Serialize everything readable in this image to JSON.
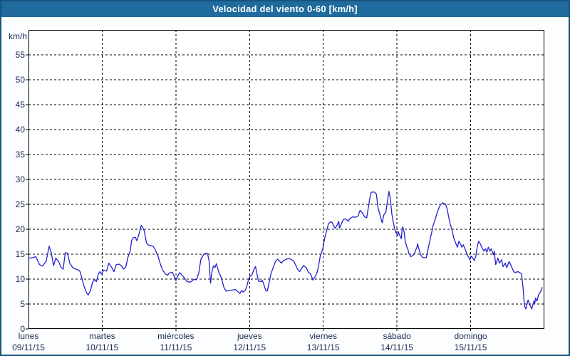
{
  "window": {
    "title": "Velocidad del viento 0-60 [km/h]"
  },
  "colors": {
    "titlebar_bg": "#1F6B9E",
    "frame_border": "#17537F",
    "page_bg": "#FBFDFE",
    "plot_bg": "#FFFFFF",
    "grid": "#000000",
    "line": "#2222CE",
    "label_text": "#1C2951",
    "title_text": "#FFFFFF"
  },
  "chart_data": {
    "type": "line",
    "title": "Velocidad del viento 0-60 [km/h]",
    "ylabel": "km/h",
    "ylim": [
      0,
      60
    ],
    "ytick_step": 5,
    "ytick_labels": [
      "0",
      "5",
      "10",
      "15",
      "20",
      "25",
      "30",
      "35",
      "40",
      "45",
      "50",
      "55"
    ],
    "xlim_days": [
      0,
      7
    ],
    "grid": "dashed",
    "legend": "none",
    "x_axis_days": [
      {
        "name": "lunes",
        "date": "09/11/15"
      },
      {
        "name": "martes",
        "date": "10/11/15"
      },
      {
        "name": "miércoles",
        "date": "11/11/15"
      },
      {
        "name": "jueves",
        "date": "12/11/15"
      },
      {
        "name": "viernes",
        "date": "13/11/15"
      },
      {
        "name": "sábado",
        "date": "14/11/15"
      },
      {
        "name": "domingo",
        "date": "15/11/15"
      }
    ],
    "series": [
      {
        "name": "Velocidad del viento",
        "unit": "km/h",
        "x_unit": "days_since_monday_00h",
        "points": [
          [
            0.0,
            14.2
          ],
          [
            0.06,
            14.3
          ],
          [
            0.1,
            14.5
          ],
          [
            0.15,
            12.9
          ],
          [
            0.19,
            12.6
          ],
          [
            0.24,
            13.6
          ],
          [
            0.28,
            16.6
          ],
          [
            0.31,
            15.2
          ],
          [
            0.34,
            12.7
          ],
          [
            0.37,
            14.2
          ],
          [
            0.41,
            13.5
          ],
          [
            0.44,
            12.4
          ],
          [
            0.47,
            12.0
          ],
          [
            0.5,
            15.3
          ],
          [
            0.53,
            15.2
          ],
          [
            0.56,
            13.2
          ],
          [
            0.6,
            12.3
          ],
          [
            0.64,
            12.0
          ],
          [
            0.67,
            11.9
          ],
          [
            0.7,
            11.5
          ],
          [
            0.73,
            9.9
          ],
          [
            0.75,
            8.7
          ],
          [
            0.79,
            7.2
          ],
          [
            0.81,
            6.8
          ],
          [
            0.84,
            7.7
          ],
          [
            0.87,
            9.4
          ],
          [
            0.9,
            9.9
          ],
          [
            0.92,
            9.5
          ],
          [
            0.95,
            11.1
          ],
          [
            0.97,
            11.5
          ],
          [
            0.99,
            11.0
          ],
          [
            1.02,
            11.8
          ],
          [
            1.06,
            11.6
          ],
          [
            1.09,
            13.2
          ],
          [
            1.13,
            12.3
          ],
          [
            1.16,
            11.5
          ],
          [
            1.19,
            12.9
          ],
          [
            1.23,
            13.0
          ],
          [
            1.26,
            12.7
          ],
          [
            1.29,
            12.0
          ],
          [
            1.32,
            12.4
          ],
          [
            1.35,
            14.4
          ],
          [
            1.38,
            15.6
          ],
          [
            1.4,
            17.8
          ],
          [
            1.42,
            18.3
          ],
          [
            1.45,
            18.4
          ],
          [
            1.47,
            17.7
          ],
          [
            1.5,
            19.0
          ],
          [
            1.53,
            20.8
          ],
          [
            1.55,
            20.4
          ],
          [
            1.57,
            19.7
          ],
          [
            1.6,
            17.3
          ],
          [
            1.62,
            16.9
          ],
          [
            1.66,
            16.7
          ],
          [
            1.69,
            16.6
          ],
          [
            1.72,
            15.9
          ],
          [
            1.76,
            14.5
          ],
          [
            1.79,
            13.0
          ],
          [
            1.82,
            11.8
          ],
          [
            1.86,
            11.0
          ],
          [
            1.89,
            10.8
          ],
          [
            1.91,
            11.2
          ],
          [
            1.95,
            11.4
          ],
          [
            1.98,
            10.5
          ],
          [
            2.0,
            9.7
          ],
          [
            2.02,
            10.4
          ],
          [
            2.05,
            11.3
          ],
          [
            2.09,
            10.7
          ],
          [
            2.12,
            10.1
          ],
          [
            2.15,
            9.5
          ],
          [
            2.19,
            9.4
          ],
          [
            2.21,
            9.5
          ],
          [
            2.24,
            9.9
          ],
          [
            2.28,
            9.9
          ],
          [
            2.31,
            11.2
          ],
          [
            2.34,
            14.0
          ],
          [
            2.38,
            15.0
          ],
          [
            2.41,
            15.2
          ],
          [
            2.43,
            15.1
          ],
          [
            2.45,
            13.7
          ],
          [
            2.47,
            9.2
          ],
          [
            2.49,
            11.5
          ],
          [
            2.51,
            12.7
          ],
          [
            2.53,
            12.3
          ],
          [
            2.55,
            13.1
          ],
          [
            2.58,
            11.5
          ],
          [
            2.62,
            10.1
          ],
          [
            2.65,
            8.4
          ],
          [
            2.68,
            7.6
          ],
          [
            2.72,
            7.7
          ],
          [
            2.76,
            7.8
          ],
          [
            2.81,
            7.9
          ],
          [
            2.84,
            7.5
          ],
          [
            2.87,
            7.1
          ],
          [
            2.89,
            7.7
          ],
          [
            2.91,
            7.4
          ],
          [
            2.94,
            7.7
          ],
          [
            2.96,
            8.4
          ],
          [
            2.98,
            9.6
          ],
          [
            3.01,
            10.7
          ],
          [
            3.03,
            10.8
          ],
          [
            3.06,
            12.0
          ],
          [
            3.08,
            12.5
          ],
          [
            3.09,
            11.8
          ],
          [
            3.12,
            9.6
          ],
          [
            3.16,
            9.5
          ],
          [
            3.17,
            9.8
          ],
          [
            3.19,
            9.1
          ],
          [
            3.22,
            7.7
          ],
          [
            3.24,
            7.6
          ],
          [
            3.26,
            8.9
          ],
          [
            3.29,
            11.1
          ],
          [
            3.32,
            12.3
          ],
          [
            3.35,
            13.5
          ],
          [
            3.38,
            14.0
          ],
          [
            3.4,
            13.7
          ],
          [
            3.43,
            13.2
          ],
          [
            3.46,
            13.7
          ],
          [
            3.5,
            14.0
          ],
          [
            3.53,
            14.1
          ],
          [
            3.56,
            14.0
          ],
          [
            3.6,
            13.6
          ],
          [
            3.63,
            12.7
          ],
          [
            3.65,
            12.0
          ],
          [
            3.68,
            11.5
          ],
          [
            3.7,
            12.0
          ],
          [
            3.73,
            12.7
          ],
          [
            3.75,
            12.5
          ],
          [
            3.77,
            12.3
          ],
          [
            3.8,
            11.3
          ],
          [
            3.82,
            11.2
          ],
          [
            3.84,
            10.6
          ],
          [
            3.86,
            9.8
          ],
          [
            3.9,
            10.8
          ],
          [
            3.92,
            11.5
          ],
          [
            3.94,
            13.0
          ],
          [
            3.96,
            14.7
          ],
          [
            3.99,
            15.9
          ],
          [
            4.0,
            16.6
          ],
          [
            4.02,
            18.3
          ],
          [
            4.05,
            19.9
          ],
          [
            4.07,
            21.1
          ],
          [
            4.1,
            21.5
          ],
          [
            4.12,
            21.4
          ],
          [
            4.14,
            20.7
          ],
          [
            4.16,
            20.2
          ],
          [
            4.19,
            20.9
          ],
          [
            4.21,
            21.6
          ],
          [
            4.22,
            20.2
          ],
          [
            4.24,
            20.9
          ],
          [
            4.27,
            21.9
          ],
          [
            4.3,
            22.1
          ],
          [
            4.32,
            21.9
          ],
          [
            4.34,
            21.6
          ],
          [
            4.36,
            22.1
          ],
          [
            4.4,
            22.5
          ],
          [
            4.44,
            22.4
          ],
          [
            4.47,
            22.6
          ],
          [
            4.5,
            23.8
          ],
          [
            4.53,
            23.3
          ],
          [
            4.56,
            22.5
          ],
          [
            4.59,
            22.3
          ],
          [
            4.63,
            26.1
          ],
          [
            4.65,
            27.4
          ],
          [
            4.69,
            27.5
          ],
          [
            4.72,
            27.1
          ],
          [
            4.74,
            24.5
          ],
          [
            4.78,
            22.3
          ],
          [
            4.8,
            21.3
          ],
          [
            4.82,
            22.8
          ],
          [
            4.85,
            23.5
          ],
          [
            4.89,
            27.6
          ],
          [
            4.91,
            26.2
          ],
          [
            4.93,
            23.1
          ],
          [
            4.95,
            21.4
          ],
          [
            4.97,
            20.0
          ],
          [
            4.99,
            19.2
          ],
          [
            5.01,
            18.8
          ],
          [
            5.02,
            19.5
          ],
          [
            5.03,
            19.0
          ],
          [
            5.05,
            18.4
          ],
          [
            5.06,
            18.1
          ],
          [
            5.07,
            20.0
          ],
          [
            5.08,
            20.5
          ],
          [
            5.1,
            19.2
          ],
          [
            5.11,
            17.8
          ],
          [
            5.13,
            16.6
          ],
          [
            5.15,
            15.9
          ],
          [
            5.16,
            15.2
          ],
          [
            5.19,
            14.5
          ],
          [
            5.22,
            14.8
          ],
          [
            5.24,
            15.3
          ],
          [
            5.27,
            16.4
          ],
          [
            5.28,
            17.1
          ],
          [
            5.3,
            15.9
          ],
          [
            5.32,
            14.9
          ],
          [
            5.35,
            14.3
          ],
          [
            5.4,
            14.3
          ],
          [
            5.41,
            15.2
          ],
          [
            5.44,
            17.3
          ],
          [
            5.47,
            19.3
          ],
          [
            5.49,
            20.7
          ],
          [
            5.51,
            21.6
          ],
          [
            5.54,
            23.1
          ],
          [
            5.57,
            24.3
          ],
          [
            5.59,
            24.9
          ],
          [
            5.62,
            25.3
          ],
          [
            5.66,
            25.0
          ],
          [
            5.68,
            24.1
          ],
          [
            5.7,
            22.6
          ],
          [
            5.72,
            21.2
          ],
          [
            5.75,
            19.7
          ],
          [
            5.77,
            18.3
          ],
          [
            5.8,
            17.1
          ],
          [
            5.82,
            16.4
          ],
          [
            5.84,
            17.6
          ],
          [
            5.86,
            17.1
          ],
          [
            5.88,
            16.4
          ],
          [
            5.9,
            16.9
          ],
          [
            5.92,
            16.2
          ],
          [
            5.94,
            15.4
          ],
          [
            5.96,
            14.7
          ],
          [
            5.98,
            14.2
          ],
          [
            5.99,
            13.9
          ],
          [
            6.01,
            14.6
          ],
          [
            6.03,
            14.2
          ],
          [
            6.05,
            13.7
          ],
          [
            6.07,
            14.6
          ],
          [
            6.09,
            16.6
          ],
          [
            6.11,
            17.6
          ],
          [
            6.13,
            17.1
          ],
          [
            6.15,
            16.4
          ],
          [
            6.18,
            15.6
          ],
          [
            6.2,
            16.1
          ],
          [
            6.22,
            15.4
          ],
          [
            6.24,
            16.4
          ],
          [
            6.26,
            15.6
          ],
          [
            6.28,
            16.1
          ],
          [
            6.31,
            14.9
          ],
          [
            6.32,
            15.6
          ],
          [
            6.34,
            12.9
          ],
          [
            6.37,
            14.2
          ],
          [
            6.39,
            13.2
          ],
          [
            6.42,
            13.9
          ],
          [
            6.44,
            12.5
          ],
          [
            6.47,
            13.2
          ],
          [
            6.49,
            12.3
          ],
          [
            6.52,
            13.5
          ],
          [
            6.54,
            13.0
          ],
          [
            6.56,
            12.3
          ],
          [
            6.58,
            11.6
          ],
          [
            6.6,
            11.3
          ],
          [
            6.64,
            11.5
          ],
          [
            6.69,
            11.1
          ],
          [
            6.71,
            8.5
          ],
          [
            6.73,
            4.6
          ],
          [
            6.75,
            4.0
          ],
          [
            6.77,
            5.3
          ],
          [
            6.78,
            5.8
          ],
          [
            6.8,
            4.9
          ],
          [
            6.83,
            4.0
          ],
          [
            6.85,
            5.2
          ],
          [
            6.86,
            5.6
          ],
          [
            6.87,
            5.1
          ],
          [
            6.88,
            6.2
          ],
          [
            6.9,
            5.6
          ],
          [
            6.92,
            6.8
          ],
          [
            6.95,
            7.5
          ],
          [
            6.97,
            8.3
          ]
        ]
      }
    ]
  }
}
